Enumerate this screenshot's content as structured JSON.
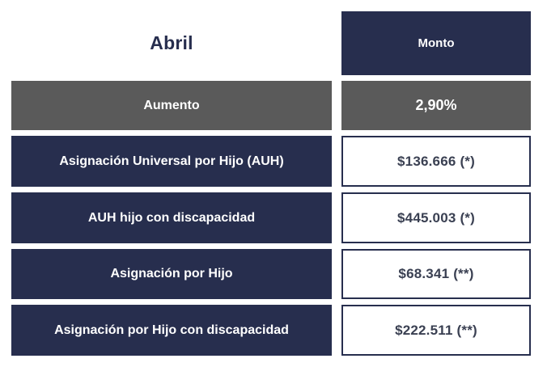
{
  "colors": {
    "navy": "#272e4e",
    "gray": "#5a5a5a",
    "value_text": "#3a4052",
    "background": "#ffffff"
  },
  "header": {
    "month": "Abril",
    "amount_label": "Monto"
  },
  "increase_row": {
    "label": "Aumento",
    "value": "2,90%"
  },
  "rows": [
    {
      "label": "Asignación Universal por Hijo (AUH)",
      "value": "$136.666 (*)"
    },
    {
      "label": "AUH hijo con discapacidad",
      "value": "$445.003 (*)"
    },
    {
      "label": "Asignación por Hijo",
      "value": "$68.341 (**)"
    },
    {
      "label": "Asignación por Hijo con discapacidad",
      "value": "$222.511 (**)"
    }
  ],
  "chart_data": {
    "type": "table",
    "title": "Abril",
    "columns": [
      "Abril",
      "Monto"
    ],
    "rows": [
      [
        "Aumento",
        "2,90%"
      ],
      [
        "Asignación Universal por Hijo (AUH)",
        "$136.666 (*)"
      ],
      [
        "AUH hijo con discapacidad",
        "$445.003 (*)"
      ],
      [
        "Asignación por Hijo",
        "$68.341 (**)"
      ],
      [
        "Asignación por Hijo con discapacidad",
        "$222.511 (**)"
      ]
    ],
    "notes": "Increase percentage row styled gray; benefit rows navy with bordered white amount cells; (*) and (**) are footnote markers"
  }
}
